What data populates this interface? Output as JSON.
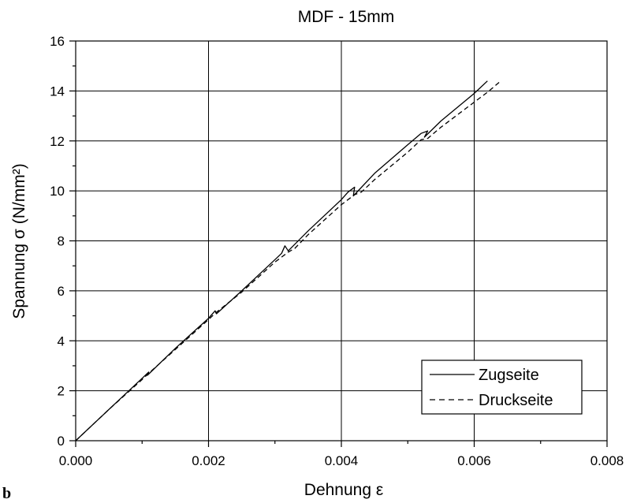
{
  "chart_data": {
    "type": "line",
    "title": "MDF - 15mm",
    "xlabel": "Dehnung ε",
    "ylabel": "Spannung σ (N/mm²)",
    "panel_label": "b",
    "xlim": [
      0,
      0.008
    ],
    "ylim": [
      0,
      16
    ],
    "x_ticks": [
      "0.000",
      "0.002",
      "0.004",
      "0.006",
      "0.008"
    ],
    "y_ticks": [
      "0",
      "2",
      "4",
      "6",
      "8",
      "10",
      "12",
      "14",
      "16"
    ],
    "grid": true,
    "legend_position": "bottom-right",
    "series": [
      {
        "name": "Zugseite",
        "line_style": "solid",
        "color": "#000000",
        "x": [
          0,
          0.0005,
          0.001,
          0.0011,
          0.00108,
          0.0015,
          0.002,
          0.0021,
          0.00212,
          0.0025,
          0.003,
          0.0031,
          0.00315,
          0.0032,
          0.0035,
          0.004,
          0.0041,
          0.0042,
          0.00418,
          0.0045,
          0.005,
          0.0052,
          0.0053,
          0.00525,
          0.0055,
          0.006,
          0.0062
        ],
        "y": [
          0,
          1.25,
          2.5,
          2.75,
          2.62,
          3.7,
          4.9,
          5.2,
          5.08,
          6.0,
          7.25,
          7.5,
          7.8,
          7.6,
          8.4,
          9.65,
          9.95,
          10.15,
          9.8,
          10.7,
          11.85,
          12.3,
          12.4,
          12.15,
          12.8,
          13.9,
          14.4
        ]
      },
      {
        "name": "Druckseite",
        "line_style": "dashed",
        "color": "#000000",
        "x": [
          0,
          0.0005,
          0.001,
          0.0011,
          0.0015,
          0.002,
          0.0021,
          0.0025,
          0.003,
          0.0032,
          0.0033,
          0.0035,
          0.004,
          0.0042,
          0.0043,
          0.0045,
          0.005,
          0.0052,
          0.0053,
          0.0055,
          0.006,
          0.0062,
          0.0064
        ],
        "y": [
          0,
          1.25,
          2.45,
          2.7,
          3.65,
          4.85,
          5.1,
          5.95,
          7.15,
          7.55,
          7.7,
          8.25,
          9.45,
          9.85,
          9.95,
          10.45,
          11.55,
          12.05,
          12.1,
          12.55,
          13.55,
          13.95,
          14.4
        ]
      }
    ]
  }
}
